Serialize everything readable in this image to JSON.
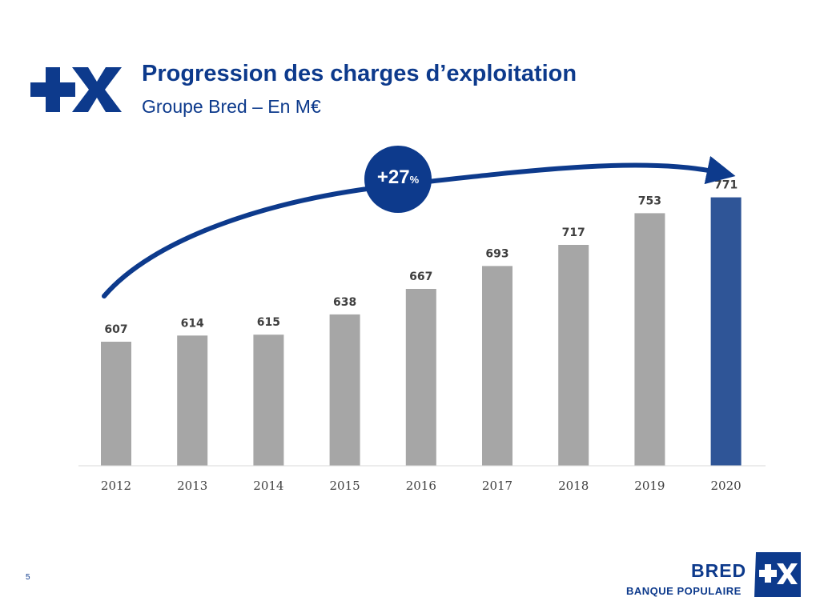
{
  "slide": {
    "title": "Progression des charges d’exploitation",
    "subtitle": "Groupe Bred – En M€",
    "page_number": "5"
  },
  "badge": {
    "value": "+27",
    "unit": "%"
  },
  "brand": {
    "name": "BRED",
    "tagline": "BANQUE POPULAIRE"
  },
  "colors": {
    "brand": "#0d3a8c",
    "bar": "#a6a6a6",
    "highlight": "#2f5597"
  },
  "icons": {
    "logo": "plus-x-logo-icon",
    "arrow": "growth-arrow-icon"
  },
  "chart_data": {
    "type": "bar",
    "categories": [
      "2012",
      "2013",
      "2014",
      "2015",
      "2016",
      "2017",
      "2018",
      "2019",
      "2020"
    ],
    "values": [
      607,
      614,
      615,
      638,
      667,
      693,
      717,
      753,
      771
    ],
    "highlight_category": "2020",
    "title": "",
    "xlabel": "",
    "ylabel": "",
    "ylim": [
      440,
      800
    ],
    "grid": false,
    "legend": "none"
  }
}
